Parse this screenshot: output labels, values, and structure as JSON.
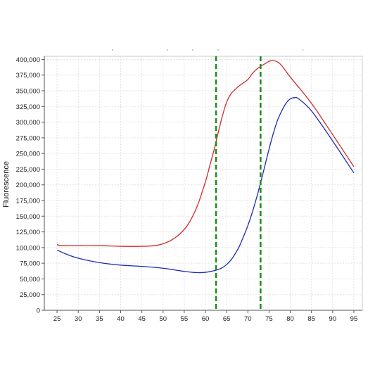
{
  "chart_data": {
    "type": "line",
    "title": "",
    "xlabel": "",
    "ylabel": "Fluorescence",
    "xlim": [
      22,
      97
    ],
    "ylim": [
      0,
      405000
    ],
    "grid": true,
    "legend": "none",
    "x_ticks": [
      25,
      30,
      35,
      40,
      45,
      50,
      55,
      60,
      65,
      70,
      75,
      80,
      85,
      90,
      95
    ],
    "x_tick_labels": [
      "25",
      "30",
      "35",
      "40",
      "45",
      "50",
      "55",
      "60",
      "65",
      "70",
      "75",
      "80",
      "85",
      "90",
      "95"
    ],
    "y_ticks": [
      0,
      25000,
      50000,
      75000,
      100000,
      125000,
      150000,
      175000,
      200000,
      225000,
      250000,
      275000,
      300000,
      325000,
      350000,
      375000,
      400000
    ],
    "y_tick_labels": [
      "0",
      "25,000",
      "50,000",
      "75,000",
      "100,000",
      "125,000",
      "150,000",
      "175,000",
      "200,000",
      "225,000",
      "250,000",
      "275,000",
      "300,000",
      "325,000",
      "350,000",
      "375,000",
      "400,000"
    ],
    "series": [
      {
        "color": "#d42a2a",
        "x": [
          25,
          26,
          30,
          35,
          40,
          45,
          48,
          50,
          52,
          54,
          56,
          58,
          60,
          61,
          62,
          63,
          64,
          65,
          66,
          67,
          68,
          70,
          71,
          72,
          73,
          74,
          75,
          76,
          77,
          78,
          80,
          85,
          90,
          95
        ],
        "y": [
          105000,
          103000,
          103000,
          103000,
          102000,
          102000,
          103000,
          106000,
          112000,
          122000,
          138000,
          165000,
          205000,
          230000,
          255000,
          283000,
          310000,
          332000,
          345000,
          352000,
          358000,
          368000,
          377000,
          384000,
          389000,
          393000,
          397000,
          398000,
          396000,
          390000,
          372000,
          330000,
          280000,
          229000
        ]
      },
      {
        "color": "#1c2bb5",
        "x": [
          25,
          27,
          30,
          35,
          40,
          45,
          50,
          55,
          58,
          60,
          62,
          63,
          64,
          65,
          66,
          67,
          68,
          69,
          70,
          71,
          72,
          73,
          74,
          75,
          76,
          77,
          78,
          79,
          80,
          81,
          82,
          85,
          90,
          95
        ],
        "y": [
          96000,
          90000,
          83000,
          76000,
          72000,
          70000,
          67000,
          62000,
          60000,
          60500,
          63000,
          65000,
          68000,
          73000,
          80000,
          90000,
          102000,
          118000,
          135000,
          155000,
          178000,
          203000,
          230000,
          257000,
          282000,
          303000,
          318000,
          330000,
          337000,
          339000,
          337000,
          318000,
          270000,
          219000
        ]
      }
    ],
    "reference_lines": [
      {
        "x": 62.5,
        "color": "#228b22",
        "style": "dashed"
      },
      {
        "x": 73,
        "color": "#228b22",
        "style": "dashed"
      }
    ],
    "top_marks": [
      38,
      51,
      57,
      63,
      83
    ]
  }
}
